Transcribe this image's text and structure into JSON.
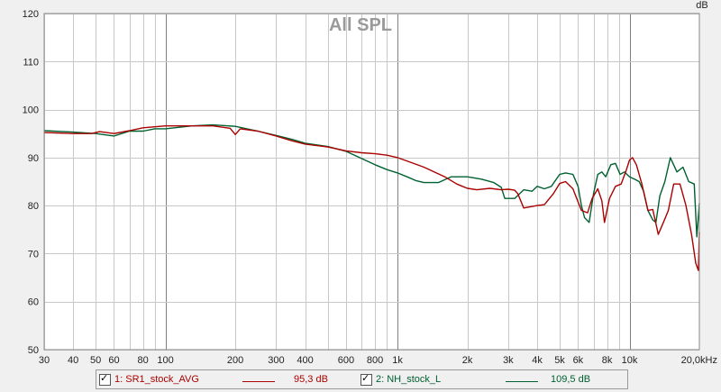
{
  "chart_data": {
    "type": "line",
    "title": "All SPL",
    "ylabel": "dB",
    "xlabel": "",
    "xscale": "log",
    "xlim": [
      30,
      20000
    ],
    "ylim": [
      50,
      120
    ],
    "yticks": [
      "50",
      "60",
      "70",
      "80",
      "90",
      "100",
      "110",
      "120"
    ],
    "ytick_values": [
      50,
      60,
      70,
      80,
      90,
      100,
      110,
      120
    ],
    "xticks": [
      "30",
      "40",
      "50",
      "60",
      "80",
      "100",
      "200",
      "300",
      "400",
      "600",
      "800",
      "1k",
      "2k",
      "3k",
      "4k",
      "5k",
      "6k",
      "8k",
      "10k",
      "20,0kHz"
    ],
    "xtick_values": [
      30,
      40,
      50,
      60,
      80,
      100,
      200,
      300,
      400,
      600,
      800,
      1000,
      2000,
      3000,
      4000,
      5000,
      6000,
      8000,
      10000,
      20000
    ],
    "grid": true,
    "series": [
      {
        "name": "1: SR1_stock_AVG",
        "level": "95,3 dB",
        "color": "#aa0000",
        "x": [
          30,
          40,
          48,
          52,
          60,
          70,
          80,
          100,
          130,
          160,
          190,
          200,
          210,
          250,
          300,
          350,
          400,
          500,
          600,
          700,
          800,
          900,
          1000,
          1300,
          1600,
          1800,
          2000,
          2200,
          2500,
          2800,
          3000,
          3200,
          3300,
          3500,
          4000,
          4300,
          4700,
          5000,
          5300,
          5700,
          6200,
          6600,
          6900,
          7300,
          7600,
          7800,
          8200,
          8700,
          9200,
          9700,
          10000,
          10300,
          10700,
          11300,
          12000,
          12600,
          13300,
          14000,
          14700,
          15500,
          16500,
          17500,
          18500,
          19300,
          19800,
          20000
        ],
        "y": [
          95.2,
          95,
          95,
          95.4,
          95,
          95.6,
          96.2,
          96.6,
          96.6,
          96.6,
          96.1,
          94.8,
          96,
          95.5,
          94.5,
          93.5,
          92.8,
          92.2,
          91.4,
          91,
          90.8,
          90.5,
          90,
          88,
          86,
          84.5,
          83.6,
          83.3,
          83.6,
          83.3,
          83.4,
          83.2,
          82.5,
          79.5,
          80,
          80.2,
          82.5,
          84.6,
          85,
          83.5,
          79,
          78.5,
          81.5,
          83.5,
          81,
          76.5,
          81.5,
          84,
          84.5,
          87.5,
          89.5,
          90,
          88.5,
          84.5,
          79,
          79.2,
          74,
          76.5,
          79,
          84.5,
          84.5,
          80,
          74,
          68,
          66.5,
          74.5
        ]
      },
      {
        "name": "2: NH_stock_L",
        "level": "109,5 dB",
        "color": "#006030",
        "x": [
          30,
          40,
          50,
          60,
          70,
          80,
          90,
          100,
          130,
          160,
          200,
          250,
          300,
          350,
          400,
          500,
          600,
          700,
          800,
          900,
          1000,
          1100,
          1200,
          1300,
          1500,
          1700,
          2000,
          2300,
          2600,
          2800,
          2900,
          3000,
          3200,
          3500,
          3800,
          4000,
          4300,
          4600,
          5000,
          5300,
          5700,
          6000,
          6200,
          6400,
          6700,
          7000,
          7300,
          7600,
          7900,
          8300,
          8700,
          9100,
          9500,
          10000,
          10500,
          11000,
          11500,
          12000,
          12600,
          13000,
          13500,
          14200,
          15000,
          16000,
          17000,
          18000,
          19000,
          19500,
          20000
        ],
        "y": [
          95.6,
          95.3,
          95,
          94.5,
          95.5,
          95.5,
          96,
          96,
          96.6,
          96.8,
          96.5,
          95.5,
          94.6,
          93.8,
          93,
          92.3,
          91.3,
          89.8,
          88.5,
          87.5,
          86.8,
          86,
          85.2,
          84.8,
          84.8,
          86,
          86,
          85.5,
          84.8,
          83.8,
          81.5,
          81.5,
          81.5,
          83.3,
          83,
          84,
          83.5,
          84,
          86.5,
          86.8,
          86.5,
          84,
          80,
          77.5,
          76.5,
          82.5,
          86.5,
          87,
          86,
          88.5,
          88.8,
          86.5,
          87,
          86,
          85.5,
          85,
          83,
          79,
          77,
          76.5,
          82,
          85,
          90,
          87,
          88,
          85,
          84.5,
          73.5,
          80.5
        ]
      }
    ]
  },
  "legend": {
    "items": [
      {
        "label": "1: SR1_stock_AVG",
        "value": "95,3 dB",
        "color": "#aa0000"
      },
      {
        "label": "2: NH_stock_L",
        "value": "109,5 dB",
        "color": "#006030"
      }
    ]
  }
}
